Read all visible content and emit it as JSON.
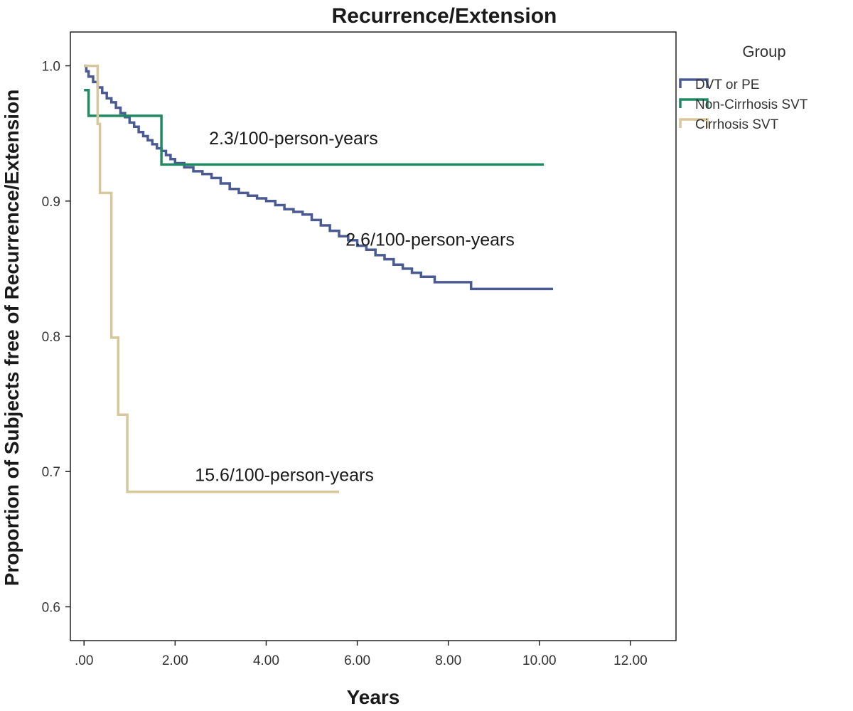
{
  "chart_data": {
    "type": "line",
    "title": "Recurrence/Extension",
    "xlabel": "Years",
    "ylabel": "Proportion of Subjects free of Recurrence/Extension",
    "xlim": [
      -0.3,
      13.0
    ],
    "ylim": [
      0.575,
      1.025
    ],
    "x_ticks": [
      0,
      2,
      4,
      6,
      8,
      10,
      12
    ],
    "x_tick_labels": [
      ".00",
      "2.00",
      "4.00",
      "6.00",
      "8.00",
      "10.00",
      "12.00"
    ],
    "y_ticks": [
      0.6,
      0.7,
      0.8,
      0.9,
      1.0
    ],
    "y_tick_labels": [
      "0.6",
      "0.7",
      "0.8",
      "0.9",
      "1.0"
    ],
    "grid": false,
    "legend": {
      "title": "Group",
      "position": "right"
    },
    "series": [
      {
        "name": "DVT or PE",
        "color": "#4a5a93",
        "step": true,
        "x": [
          0,
          0.05,
          0.1,
          0.2,
          0.3,
          0.4,
          0.5,
          0.6,
          0.7,
          0.8,
          0.9,
          1.0,
          1.1,
          1.2,
          1.3,
          1.4,
          1.5,
          1.6,
          1.7,
          1.8,
          1.9,
          2.0,
          2.2,
          2.4,
          2.6,
          2.8,
          3.0,
          3.2,
          3.4,
          3.6,
          3.8,
          4.0,
          4.2,
          4.4,
          4.6,
          4.8,
          5.0,
          5.2,
          5.4,
          5.6,
          5.8,
          6.0,
          6.2,
          6.4,
          6.6,
          6.8,
          7.0,
          7.2,
          7.4,
          7.7,
          8.5,
          10.3
        ],
        "y": [
          1.0,
          0.996,
          0.992,
          0.988,
          0.984,
          0.98,
          0.976,
          0.973,
          0.969,
          0.965,
          0.962,
          0.958,
          0.955,
          0.951,
          0.948,
          0.945,
          0.942,
          0.939,
          0.937,
          0.934,
          0.931,
          0.928,
          0.925,
          0.922,
          0.92,
          0.917,
          0.913,
          0.909,
          0.906,
          0.904,
          0.902,
          0.9,
          0.897,
          0.894,
          0.892,
          0.89,
          0.886,
          0.882,
          0.878,
          0.874,
          0.871,
          0.867,
          0.864,
          0.86,
          0.857,
          0.853,
          0.85,
          0.847,
          0.844,
          0.84,
          0.835,
          0.835
        ]
      },
      {
        "name": "Non-Cirrhosis SVT",
        "color": "#1e8a62",
        "step": true,
        "x": [
          0,
          0.04,
          0.1,
          1.7,
          10.1
        ],
        "y": [
          0.982,
          0.982,
          0.963,
          0.927,
          0.927
        ]
      },
      {
        "name": "Cirrhosis SVT",
        "color": "#d7c79a",
        "step": true,
        "x": [
          0,
          0.3,
          0.35,
          0.6,
          0.75,
          0.95,
          5.6
        ],
        "y": [
          1.0,
          0.957,
          0.906,
          0.799,
          0.742,
          0.685,
          0.685
        ]
      }
    ],
    "annotations": [
      {
        "text": "2.3/100-person-years",
        "x": 4.6,
        "y": 0.942
      },
      {
        "text": "2.6/100-person-years",
        "x": 7.6,
        "y": 0.867
      },
      {
        "text": "15.6/100-person-years",
        "x": 4.4,
        "y": 0.693
      }
    ]
  }
}
